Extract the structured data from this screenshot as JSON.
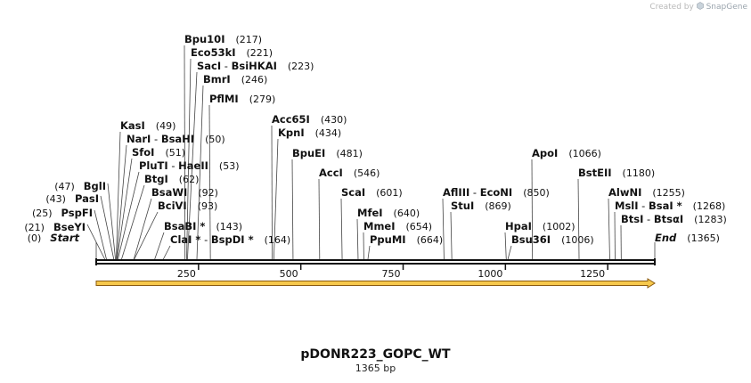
{
  "credit": {
    "prefix": "Created by",
    "brand": "SnapGene",
    "icon": "snapgene-logo-icon"
  },
  "plasmid": {
    "name": "pDONR223_GOPC_WT",
    "length_label": "1365 bp",
    "length": 1365
  },
  "colors": {
    "feature_fill": "#f6c84c",
    "feature_outline": "#8a5a10",
    "backbone": "#111111",
    "site_line": "#444444"
  },
  "ruler": {
    "ticks": [
      250,
      500,
      750,
      1000,
      1250
    ]
  },
  "ends": {
    "start": {
      "label": "Start",
      "pos_label": "(0)",
      "pos": 0
    },
    "end": {
      "label": "End",
      "pos_label": "(1365)",
      "pos": 1365
    }
  },
  "sites": [
    {
      "parts": [
        {
          "t": "BseYI"
        }
      ],
      "pos_label": "(21)",
      "pos": 21,
      "side": "left"
    },
    {
      "parts": [
        {
          "t": "PspFI"
        }
      ],
      "pos_label": "(25)",
      "pos": 25,
      "side": "left"
    },
    {
      "parts": [
        {
          "t": "PasI"
        }
      ],
      "pos_label": "(43)",
      "pos": 43,
      "side": "left"
    },
    {
      "parts": [
        {
          "t": "BglI"
        }
      ],
      "pos_label": "(47)",
      "pos": 47,
      "side": "left"
    },
    {
      "parts": [
        {
          "t": "KasI"
        }
      ],
      "pos_label": "(49)",
      "pos": 49,
      "side": "right"
    },
    {
      "parts": [
        {
          "t": "NarI"
        },
        {
          "t": " - ",
          "sep": true
        },
        {
          "t": "BsaHI"
        }
      ],
      "pos_label": "(50)",
      "pos": 50,
      "side": "right"
    },
    {
      "parts": [
        {
          "t": "SfoI"
        }
      ],
      "pos_label": "(51)",
      "pos": 51,
      "side": "right"
    },
    {
      "parts": [
        {
          "t": "PluTI"
        },
        {
          "t": " - ",
          "sep": true
        },
        {
          "t": "HaeII"
        }
      ],
      "pos_label": "(53)",
      "pos": 53,
      "side": "right"
    },
    {
      "parts": [
        {
          "t": "BtgI"
        }
      ],
      "pos_label": "(62)",
      "pos": 62,
      "side": "right"
    },
    {
      "parts": [
        {
          "t": "BsaWI"
        }
      ],
      "pos_label": "(92)",
      "pos": 92,
      "side": "right"
    },
    {
      "parts": [
        {
          "t": "BciVI"
        }
      ],
      "pos_label": "(93)",
      "pos": 93,
      "side": "right"
    },
    {
      "parts": [
        {
          "t": "BsaBI *"
        }
      ],
      "pos_label": "(143)",
      "pos": 143,
      "side": "right"
    },
    {
      "parts": [
        {
          "t": "ClaI *"
        },
        {
          "t": " - ",
          "sep": true
        },
        {
          "t": "BspDI *"
        }
      ],
      "pos_label": "(164)",
      "pos": 164,
      "side": "right"
    },
    {
      "parts": [
        {
          "t": "Bpu10I"
        }
      ],
      "pos_label": "(217)",
      "pos": 217,
      "side": "right"
    },
    {
      "parts": [
        {
          "t": "Eco53kI"
        }
      ],
      "pos_label": "(221)",
      "pos": 221,
      "side": "right"
    },
    {
      "parts": [
        {
          "t": "SacI"
        },
        {
          "t": " - ",
          "sep": true
        },
        {
          "t": "BsiHKAI"
        }
      ],
      "pos_label": "(223)",
      "pos": 223,
      "side": "right"
    },
    {
      "parts": [
        {
          "t": "BmrI"
        }
      ],
      "pos_label": "(246)",
      "pos": 246,
      "side": "right"
    },
    {
      "parts": [
        {
          "t": "PflMI"
        }
      ],
      "pos_label": "(279)",
      "pos": 279,
      "side": "right"
    },
    {
      "parts": [
        {
          "t": "Acc65I"
        }
      ],
      "pos_label": "(430)",
      "pos": 430,
      "side": "right"
    },
    {
      "parts": [
        {
          "t": "KpnI"
        }
      ],
      "pos_label": "(434)",
      "pos": 434,
      "side": "right"
    },
    {
      "parts": [
        {
          "t": "BpuEI"
        }
      ],
      "pos_label": "(481)",
      "pos": 481,
      "side": "right"
    },
    {
      "parts": [
        {
          "t": "AccI"
        }
      ],
      "pos_label": "(546)",
      "pos": 546,
      "side": "right"
    },
    {
      "parts": [
        {
          "t": "ScaI"
        }
      ],
      "pos_label": "(601)",
      "pos": 601,
      "side": "right"
    },
    {
      "parts": [
        {
          "t": "MfeI"
        }
      ],
      "pos_label": "(640)",
      "pos": 640,
      "side": "right"
    },
    {
      "parts": [
        {
          "t": "MmeI"
        }
      ],
      "pos_label": "(654)",
      "pos": 654,
      "side": "right"
    },
    {
      "parts": [
        {
          "t": "PpuMI"
        }
      ],
      "pos_label": "(664)",
      "pos": 664,
      "side": "right"
    },
    {
      "parts": [
        {
          "t": "AflIII"
        },
        {
          "t": " - ",
          "sep": true
        },
        {
          "t": "EcoNI"
        }
      ],
      "pos_label": "(850)",
      "pos": 850,
      "side": "right"
    },
    {
      "parts": [
        {
          "t": "StuI"
        }
      ],
      "pos_label": "(869)",
      "pos": 869,
      "side": "right"
    },
    {
      "parts": [
        {
          "t": "HpaI"
        }
      ],
      "pos_label": "(1002)",
      "pos": 1002,
      "side": "right"
    },
    {
      "parts": [
        {
          "t": "Bsu36I"
        }
      ],
      "pos_label": "(1006)",
      "pos": 1006,
      "side": "right"
    },
    {
      "parts": [
        {
          "t": "ApoI"
        }
      ],
      "pos_label": "(1066)",
      "pos": 1066,
      "side": "right"
    },
    {
      "parts": [
        {
          "t": "BstEII"
        }
      ],
      "pos_label": "(1180)",
      "pos": 1180,
      "side": "right"
    },
    {
      "parts": [
        {
          "t": "AlwNI"
        }
      ],
      "pos_label": "(1255)",
      "pos": 1255,
      "side": "right"
    },
    {
      "parts": [
        {
          "t": "MslI"
        },
        {
          "t": " - ",
          "sep": true
        },
        {
          "t": "BsaI *"
        }
      ],
      "pos_label": "(1268)",
      "pos": 1268,
      "side": "right"
    },
    {
      "parts": [
        {
          "t": "BtsI"
        },
        {
          "t": " - ",
          "sep": true
        },
        {
          "t": "BtsαI"
        }
      ],
      "pos_label": "(1283)",
      "pos": 1283,
      "side": "right"
    }
  ],
  "features": [
    {
      "name": "feature-arrow",
      "start": 0,
      "end": 1365,
      "direction": "forward"
    }
  ]
}
